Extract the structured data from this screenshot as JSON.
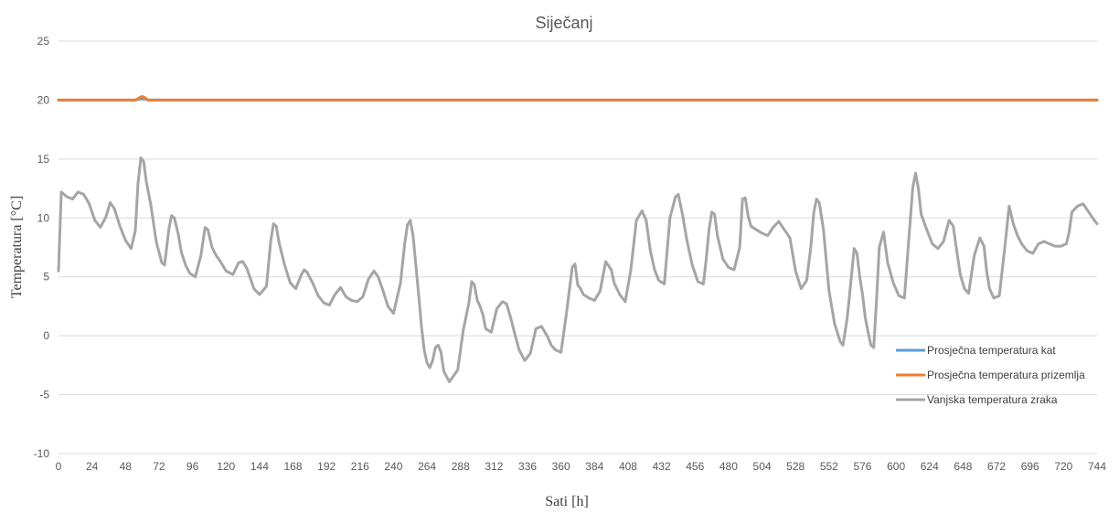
{
  "chart_data": {
    "type": "line",
    "title": "Siječanj",
    "xlabel": "Sati [h]",
    "ylabel": "Temperatura [°C]",
    "xlim": [
      0,
      744
    ],
    "ylim": [
      -10,
      25
    ],
    "xticks": [
      0,
      24,
      48,
      72,
      96,
      120,
      144,
      168,
      192,
      216,
      240,
      264,
      288,
      312,
      336,
      360,
      384,
      408,
      432,
      456,
      480,
      504,
      528,
      552,
      576,
      600,
      624,
      648,
      672,
      696,
      720,
      744
    ],
    "yticks": [
      -10,
      -5,
      0,
      5,
      10,
      15,
      20,
      25
    ],
    "grid": "horizontal",
    "legend_position": "lower-right",
    "series": [
      {
        "name": "Prosječna temperatura kat",
        "color": "#5b9bd5",
        "x": [
          0,
          55,
          58,
          60,
          62,
          64,
          70,
          744
        ],
        "y": [
          20,
          20,
          20.1,
          20.1,
          20.1,
          20,
          20,
          20
        ]
      },
      {
        "name": "Prosječna temperatura prizemlja",
        "color": "#ed7d31",
        "x": [
          0,
          55,
          58,
          60,
          62,
          64,
          70,
          744
        ],
        "y": [
          20,
          20,
          20.2,
          20.3,
          20.2,
          20,
          20,
          20
        ]
      },
      {
        "name": "Vanjska temperatura zraka",
        "color": "#a5a5a5",
        "x": [
          0,
          2,
          6,
          10,
          14,
          18,
          22,
          26,
          30,
          34,
          37,
          40,
          44,
          48,
          52,
          55,
          57,
          59,
          61,
          63,
          66,
          70,
          74,
          76,
          79,
          81,
          83,
          86,
          88,
          91,
          94,
          98,
          102,
          105,
          107,
          110,
          113,
          116,
          120,
          125,
          129,
          132,
          135,
          140,
          144,
          149,
          152,
          154,
          156,
          158,
          162,
          166,
          170,
          174,
          176,
          178,
          182,
          186,
          190,
          194,
          198,
          202,
          206,
          210,
          214,
          218,
          222,
          226,
          229,
          232,
          236,
          240,
          245,
          248,
          250,
          252,
          254,
          256,
          258,
          260,
          262,
          264,
          266,
          268,
          270,
          272,
          274,
          276,
          280,
          283,
          286,
          290,
          294,
          296,
          298,
          300,
          302,
          304,
          306,
          310,
          314,
          318,
          321,
          324,
          327,
          330,
          334,
          338,
          342,
          346,
          350,
          353,
          356,
          360,
          364,
          368,
          370,
          372,
          374,
          376,
          380,
          384,
          388,
          392,
          396,
          398,
          402,
          406,
          410,
          414,
          418,
          421,
          424,
          427,
          430,
          434,
          438,
          442,
          444,
          447,
          450,
          454,
          458,
          462,
          464,
          466,
          468,
          470,
          472,
          476,
          480,
          484,
          488,
          490,
          492,
          494,
          496,
          500,
          504,
          508,
          512,
          516,
          520,
          524,
          528,
          532,
          536,
          539,
          541,
          543,
          545,
          548,
          552,
          556,
          560,
          562,
          565,
          568,
          570,
          572,
          574,
          576,
          578,
          580,
          582,
          584,
          586,
          588,
          591,
          594,
          598,
          602,
          606,
          609,
          612,
          614,
          616,
          618,
          622,
          626,
          630,
          634,
          638,
          641,
          643,
          646,
          649,
          652,
          656,
          660,
          663,
          665,
          667,
          670,
          674,
          678,
          681,
          684,
          687,
          690,
          694,
          698,
          702,
          706,
          710,
          714,
          718,
          722,
          724,
          726,
          730,
          734,
          738,
          742,
          744
        ],
        "y": [
          5.5,
          12.2,
          11.8,
          11.6,
          12.2,
          12.0,
          11.2,
          9.8,
          9.2,
          10.1,
          11.3,
          10.8,
          9.3,
          8.1,
          7.4,
          8.9,
          13.0,
          15.1,
          14.8,
          13.0,
          11.2,
          8.0,
          6.2,
          6.0,
          9.0,
          10.2,
          10.0,
          8.5,
          7.1,
          6.0,
          5.3,
          5.0,
          6.8,
          9.2,
          9.0,
          7.5,
          6.8,
          6.3,
          5.5,
          5.2,
          6.2,
          6.3,
          5.7,
          4.0,
          3.5,
          4.2,
          8.0,
          9.5,
          9.3,
          7.9,
          6.0,
          4.5,
          4.0,
          5.2,
          5.6,
          5.4,
          4.5,
          3.4,
          2.8,
          2.6,
          3.5,
          4.1,
          3.3,
          3.0,
          2.9,
          3.3,
          4.8,
          5.5,
          5.0,
          4.0,
          2.5,
          1.9,
          4.5,
          7.8,
          9.4,
          9.8,
          8.5,
          6.0,
          3.5,
          0.8,
          -1.2,
          -2.3,
          -2.7,
          -2.1,
          -1.0,
          -0.8,
          -1.4,
          -3.0,
          -3.9,
          -3.4,
          -2.9,
          0.5,
          2.8,
          4.6,
          4.3,
          3.0,
          2.5,
          1.8,
          0.6,
          0.3,
          2.3,
          2.9,
          2.7,
          1.5,
          0.1,
          -1.2,
          -2.1,
          -1.5,
          0.6,
          0.8,
          0.0,
          -0.8,
          -1.2,
          -1.4,
          2.0,
          5.8,
          6.1,
          4.3,
          4.0,
          3.5,
          3.2,
          3.0,
          3.8,
          6.3,
          5.6,
          4.5,
          3.5,
          2.9,
          5.6,
          9.8,
          10.6,
          9.8,
          7.2,
          5.6,
          4.7,
          4.4,
          10.0,
          11.8,
          12.0,
          10.3,
          8.2,
          6.0,
          4.6,
          4.4,
          6.5,
          9.0,
          10.5,
          10.3,
          8.5,
          6.5,
          5.8,
          5.6,
          7.5,
          11.6,
          11.7,
          10.2,
          9.3,
          9.0,
          8.7,
          8.5,
          9.2,
          9.7,
          9.0,
          8.3,
          5.5,
          4.0,
          4.7,
          7.6,
          10.4,
          11.6,
          11.3,
          9.0,
          3.8,
          1.0,
          -0.5,
          -0.8,
          1.5,
          5.0,
          7.4,
          7.0,
          5.0,
          3.5,
          1.5,
          0.3,
          -0.8,
          -1.0,
          3.0,
          7.5,
          8.8,
          6.2,
          4.5,
          3.4,
          3.2,
          8.0,
          12.6,
          13.8,
          12.5,
          10.3,
          9.0,
          7.8,
          7.4,
          8.0,
          9.8,
          9.3,
          7.6,
          5.2,
          4.0,
          3.6,
          6.8,
          8.3,
          7.6,
          5.4,
          4.0,
          3.2,
          3.4,
          7.6,
          11.0,
          9.5,
          8.5,
          7.8,
          7.2,
          7.0,
          7.8,
          8.0,
          7.8,
          7.6,
          7.6,
          7.8,
          8.8,
          10.5,
          11.0,
          11.2,
          10.5,
          9.8,
          9.5
        ]
      }
    ]
  }
}
